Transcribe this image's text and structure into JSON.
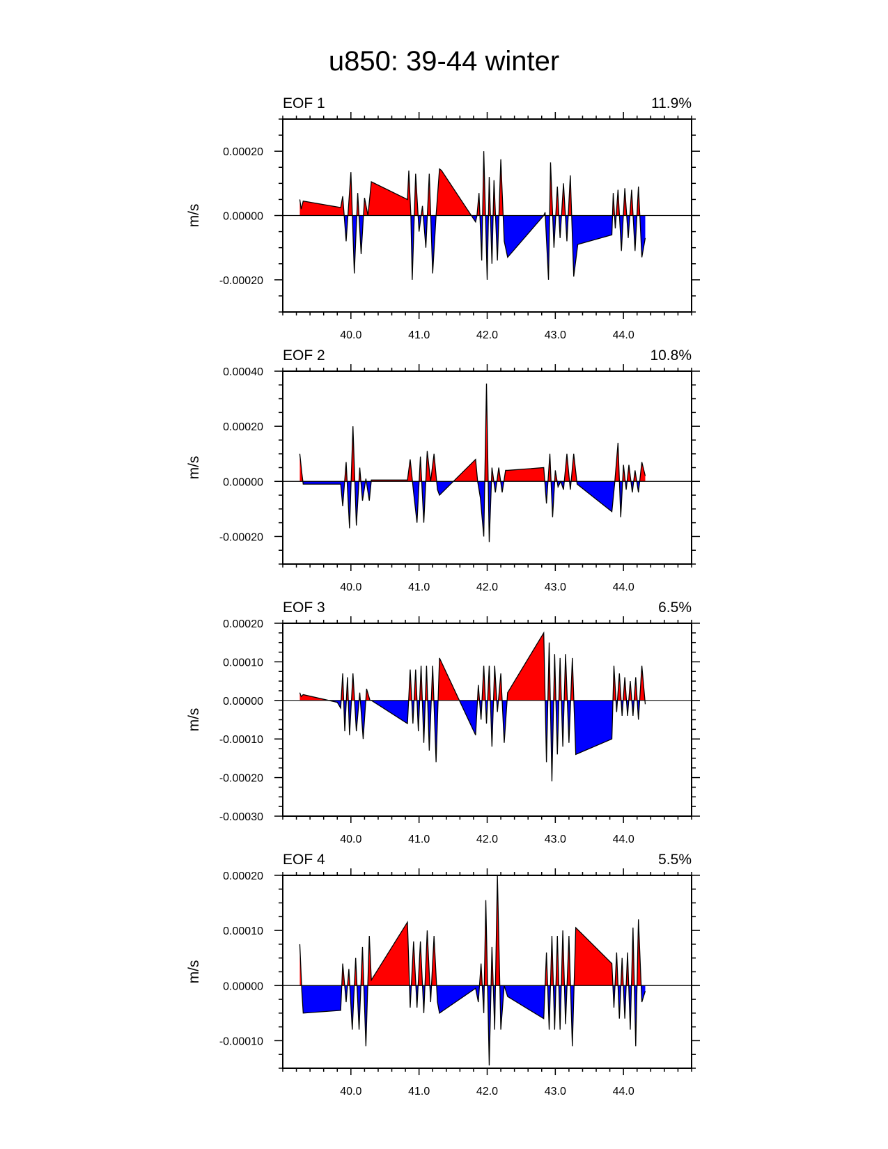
{
  "figure": {
    "title": "u850: 39-44 winter"
  },
  "colors": {
    "positive": "#ff0000",
    "negative": "#0000ff",
    "line": "#000000",
    "frame": "#000000"
  },
  "chart_data": [
    {
      "type": "area",
      "title": "EOF 1",
      "percent": "11.9%",
      "ylabel": "m/s",
      "xlim": [
        39.0,
        45.0
      ],
      "ylim": [
        -0.0003,
        0.0003
      ],
      "xticks": [
        40.0,
        41.0,
        42.0,
        43.0,
        44.0
      ],
      "xtick_labels": [
        "40.0",
        "41.0",
        "42.0",
        "43.0",
        "44.0"
      ],
      "yticks": [
        -0.0002,
        0.0,
        0.0002
      ],
      "ytick_labels": [
        "-0.00020",
        "0.00000",
        "0.00020"
      ],
      "series": {
        "name": "EOF 1",
        "x": [
          39.25,
          39.27,
          39.3,
          39.85,
          39.88,
          39.93,
          40.0,
          40.05,
          40.1,
          40.15,
          40.2,
          40.25,
          40.3,
          40.83,
          40.85,
          40.88,
          40.9,
          40.95,
          41.0,
          41.05,
          41.1,
          41.15,
          41.2,
          41.25,
          41.3,
          41.33,
          41.83,
          41.85,
          41.88,
          41.92,
          41.95,
          42.0,
          42.03,
          42.07,
          42.1,
          42.15,
          42.2,
          42.25,
          42.3,
          42.83,
          42.85,
          42.9,
          42.93,
          42.98,
          43.03,
          43.07,
          43.12,
          43.17,
          43.22,
          43.27,
          43.33,
          43.83,
          43.85,
          43.88,
          43.92,
          43.97,
          44.02,
          44.07,
          44.12,
          44.17,
          44.22,
          44.27,
          44.32
        ],
        "y": [
          5e-05,
          2e-05,
          4.5e-05,
          2.5e-05,
          6e-05,
          -8e-05,
          0.000135,
          -0.00018,
          7e-05,
          -0.00012,
          5.5e-05,
          0.0,
          0.000105,
          5e-05,
          0.00014,
          0.0,
          -0.0002,
          0.00013,
          -5e-05,
          3e-05,
          -0.0001,
          0.00013,
          -0.00018,
          0.0,
          0.000145,
          0.00014,
          -2e-05,
          0.0,
          7e-05,
          -0.00014,
          0.0002,
          -0.0002,
          0.00012,
          -0.00015,
          0.00011,
          -0.00014,
          0.000175,
          -8e-05,
          -0.00013,
          0.0,
          1e-05,
          -0.0002,
          0.000165,
          -0.0001,
          9e-05,
          -7e-05,
          0.0001,
          -8e-05,
          0.000125,
          -0.00019,
          -9e-05,
          -6e-05,
          7e-05,
          -4e-05,
          8e-05,
          -0.00011,
          8.5e-05,
          -7e-05,
          8e-05,
          -0.00011,
          9e-05,
          -0.00013,
          -7e-05
        ]
      }
    },
    {
      "type": "area",
      "title": "EOF 2",
      "percent": "10.8%",
      "ylabel": "m/s",
      "xlim": [
        39.0,
        45.0
      ],
      "ylim": [
        -0.0003,
        0.0004
      ],
      "xticks": [
        40.0,
        41.0,
        42.0,
        43.0,
        44.0
      ],
      "xtick_labels": [
        "40.0",
        "41.0",
        "42.0",
        "43.0",
        "44.0"
      ],
      "yticks": [
        -0.0002,
        0.0,
        0.0002,
        0.0004
      ],
      "ytick_labels": [
        "-0.00020",
        "0.00000",
        "0.00020",
        "0.00040"
      ],
      "series": {
        "name": "EOF 2",
        "x": [
          39.25,
          39.28,
          39.3,
          39.85,
          39.88,
          39.93,
          39.98,
          40.03,
          40.08,
          40.13,
          40.17,
          40.22,
          40.27,
          40.3,
          40.83,
          40.87,
          40.92,
          40.97,
          41.02,
          41.07,
          41.12,
          41.17,
          41.22,
          41.27,
          41.3,
          41.83,
          41.86,
          41.9,
          41.95,
          41.99,
          42.03,
          42.07,
          42.12,
          42.17,
          42.22,
          42.27,
          42.3,
          42.83,
          42.87,
          42.92,
          42.96,
          43.0,
          43.04,
          43.08,
          43.12,
          43.17,
          43.22,
          43.27,
          43.32,
          43.83,
          43.87,
          43.92,
          43.96,
          44.0,
          44.04,
          44.08,
          44.13,
          44.17,
          44.22,
          44.27,
          44.32
        ],
        "y": [
          0.0001,
          3e-05,
          -1e-05,
          -1e-05,
          -9e-05,
          7e-05,
          -0.00017,
          0.0002,
          -0.00016,
          5e-05,
          -7e-05,
          1e-05,
          -7e-05,
          5e-06,
          5e-06,
          8e-05,
          -4e-05,
          -0.00015,
          9e-05,
          -0.00015,
          0.00011,
          0.0,
          0.0001,
          -3e-05,
          -5e-05,
          8e-05,
          0.0,
          -6e-05,
          -0.0002,
          0.000355,
          -0.00022,
          5e-05,
          -4e-05,
          5e-05,
          -4e-05,
          4e-05,
          4e-05,
          5e-05,
          -8e-05,
          0.0001,
          -0.00013,
          4e-05,
          -2e-05,
          0.0,
          -3e-05,
          0.0001,
          -3e-05,
          0.0001,
          -1e-05,
          -0.00011,
          -1e-05,
          0.00014,
          -0.00013,
          6e-05,
          -3e-05,
          6e-05,
          -4e-05,
          4e-05,
          -4e-05,
          7e-05,
          2e-05
        ]
      }
    },
    {
      "type": "area",
      "title": "EOF 3",
      "percent": "6.5%",
      "ylabel": "m/s",
      "xlim": [
        39.0,
        45.0
      ],
      "ylim": [
        -0.0003,
        0.0002
      ],
      "xticks": [
        40.0,
        41.0,
        42.0,
        43.0,
        44.0
      ],
      "xtick_labels": [
        "40.0",
        "41.0",
        "42.0",
        "43.0",
        "44.0"
      ],
      "yticks": [
        -0.0003,
        -0.0002,
        -0.0001,
        0.0,
        0.0001,
        0.0002
      ],
      "ytick_labels": [
        "-0.00030",
        "-0.00020",
        "-0.00010",
        "0.00000",
        "0.00010",
        "0.00020"
      ],
      "series": {
        "name": "EOF 3",
        "x": [
          39.25,
          39.27,
          39.3,
          39.8,
          39.85,
          39.88,
          39.91,
          39.95,
          39.98,
          40.03,
          40.08,
          40.13,
          40.18,
          40.23,
          40.28,
          40.3,
          40.83,
          40.87,
          40.91,
          40.95,
          40.99,
          41.03,
          41.07,
          41.11,
          41.15,
          41.2,
          41.25,
          41.3,
          41.83,
          41.87,
          41.91,
          41.95,
          41.99,
          42.03,
          42.07,
          42.11,
          42.15,
          42.2,
          42.25,
          42.3,
          42.83,
          42.87,
          42.91,
          42.95,
          42.99,
          43.03,
          43.07,
          43.11,
          43.15,
          43.2,
          43.25,
          43.3,
          43.83,
          43.86,
          43.9,
          43.94,
          43.98,
          44.02,
          44.06,
          44.1,
          44.14,
          44.18,
          44.22,
          44.27,
          44.32
        ],
        "y": [
          2e-05,
          1e-05,
          1.5e-05,
          -5e-06,
          -2e-05,
          7e-05,
          -8e-05,
          6e-05,
          -9e-05,
          7e-05,
          -8e-05,
          2e-05,
          -0.0001,
          3e-05,
          0.0,
          0.0,
          -6e-05,
          8e-05,
          -6e-05,
          8e-05,
          -8e-05,
          9e-05,
          -0.00011,
          9e-05,
          -0.00013,
          9e-05,
          -0.00016,
          0.00011,
          -9e-05,
          4e-05,
          -5e-05,
          9e-05,
          -6e-05,
          9e-05,
          -0.00012,
          9e-05,
          -3e-05,
          7e-05,
          -0.00011,
          2e-05,
          0.000175,
          -0.00016,
          0.00015,
          -0.00021,
          0.00012,
          -0.00014,
          0.00011,
          -0.00012,
          0.00012,
          -0.00011,
          0.00011,
          -0.00014,
          -0.0001,
          9e-05,
          -3e-05,
          7e-05,
          -4e-05,
          6e-05,
          -4e-05,
          5e-05,
          -4e-05,
          6e-05,
          -5e-05,
          9e-05,
          -1e-05
        ]
      }
    },
    {
      "type": "area",
      "title": "EOF 4",
      "percent": "5.5%",
      "ylabel": "m/s",
      "xlim": [
        39.0,
        45.0
      ],
      "ylim": [
        -0.00015,
        0.0002
      ],
      "xticks": [
        40.0,
        41.0,
        42.0,
        43.0,
        44.0
      ],
      "xtick_labels": [
        "40.0",
        "41.0",
        "42.0",
        "43.0",
        "44.0"
      ],
      "yticks": [
        -0.0001,
        0.0,
        0.0001,
        0.0002
      ],
      "ytick_labels": [
        "-0.00010",
        "0.00000",
        "0.00010",
        "0.00020"
      ],
      "series": {
        "name": "EOF 4",
        "x": [
          39.25,
          39.28,
          39.3,
          39.85,
          39.88,
          39.93,
          39.97,
          40.02,
          40.07,
          40.12,
          40.17,
          40.22,
          40.27,
          40.3,
          40.83,
          40.87,
          40.92,
          40.97,
          41.02,
          41.07,
          41.12,
          41.17,
          41.22,
          41.27,
          41.3,
          41.83,
          41.87,
          41.91,
          41.95,
          41.98,
          42.03,
          42.07,
          42.11,
          42.15,
          42.2,
          42.25,
          42.3,
          42.83,
          42.87,
          42.91,
          42.95,
          42.99,
          43.03,
          43.07,
          43.11,
          43.15,
          43.2,
          43.25,
          43.3,
          43.83,
          43.86,
          43.9,
          43.94,
          43.98,
          44.02,
          44.06,
          44.1,
          44.14,
          44.18,
          44.22,
          44.27,
          44.32
        ],
        "y": [
          7.5e-05,
          -1e-05,
          -5e-05,
          -4.5e-05,
          4e-05,
          -3e-05,
          3e-05,
          -8e-05,
          5e-05,
          -8e-05,
          7e-05,
          -0.00011,
          9e-05,
          1e-05,
          0.000115,
          -4e-05,
          8e-05,
          -4e-05,
          8e-05,
          -5e-05,
          0.0001,
          -3e-05,
          9e-05,
          -3e-05,
          -5e-05,
          -5e-06,
          -3e-05,
          4e-05,
          -5e-05,
          0.000155,
          -0.000145,
          7e-05,
          -8e-05,
          0.0002,
          -8e-05,
          0.0,
          -2e-05,
          -6e-05,
          6e-05,
          -8e-05,
          9e-05,
          -8e-05,
          9e-05,
          -8e-05,
          0.0001,
          -7e-05,
          9e-05,
          -0.00011,
          0.000105,
          4e-05,
          -4e-05,
          6e-05,
          -6e-05,
          5e-05,
          -6e-05,
          6e-05,
          -8e-05,
          0.000105,
          -0.00011,
          0.00012,
          -3e-05,
          -1e-05
        ]
      }
    }
  ]
}
